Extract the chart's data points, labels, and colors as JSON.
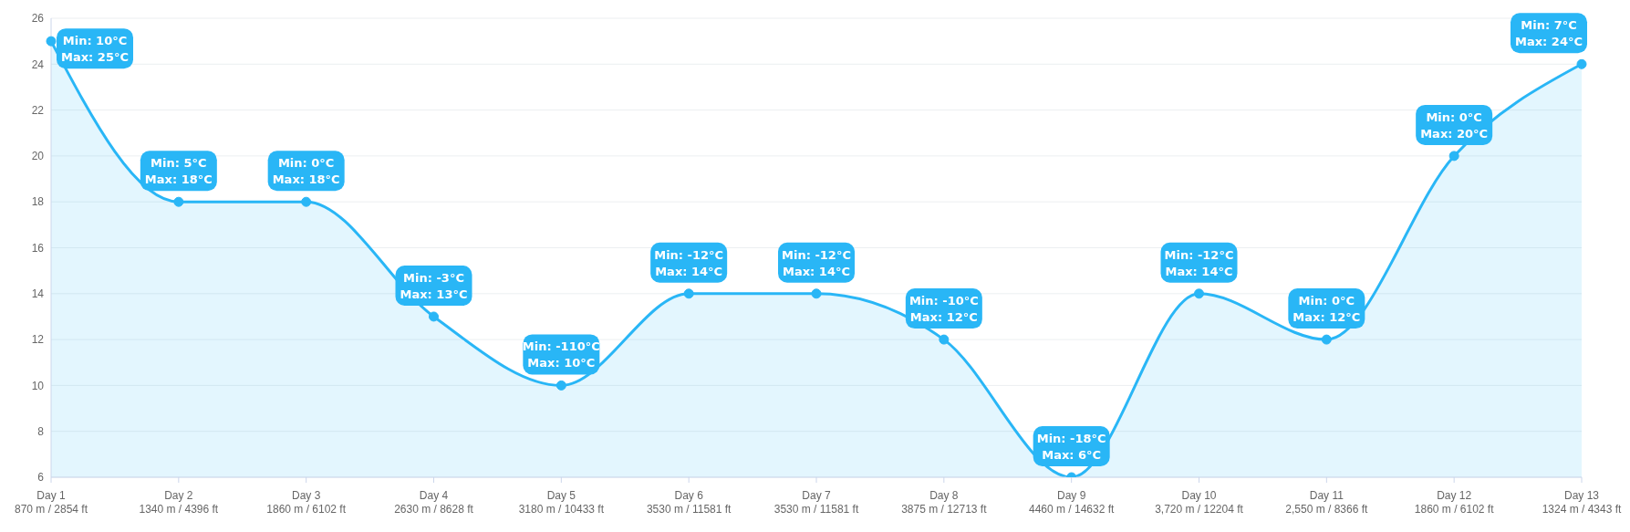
{
  "chart_data": {
    "type": "area",
    "categories": [
      "Day 1\n870 m / 2854 ft",
      "Day 2\n1340 m / 4396 ft",
      "Day 3\n1860 m / 6102 ft",
      "Day 4\n2630 m / 8628 ft",
      "Day 5\n3180 m / 10433 ft",
      "Day 6\n3530 m / 11581 ft",
      "Day 7\n3530 m / 11581 ft",
      "Day 8\n3875 m / 12713 ft",
      "Day 9\n4460 m / 14632 ft",
      "Day 10\n3,720 m / 12204 ft",
      "Day 11\n2,550 m / 8366 ft",
      "Day 12\n1860 m / 6102 ft",
      "Day 13\n1324 m / 4343 ft"
    ],
    "series": [
      {
        "color": "#29b6f6",
        "values": [
          25,
          18,
          18,
          13,
          10,
          14,
          14,
          12,
          6,
          14,
          12,
          20,
          24
        ],
        "value_labels": [
          "Min: 10°C\nMax: 25°C",
          "Min: 5°C\nMax: 18°C",
          "Min: 0°C\nMax: 18°C",
          "Min: -3°C\nMax: 13°C",
          "Min: -110°C\nMax: 10°C",
          "Min: -12°C\nMax: 14°C",
          "Min: -12°C\nMax: 14°C",
          "Min: -10°C\nMax: 12°C",
          "Min: -18°C\nMax: 6°C",
          "Min: -12°C\nMax: 14°C",
          "Min: 0°C\nMax: 12°C",
          "Min: 0°C\nMax: 20°C",
          "Min: 7°C\nMax: 24°C"
        ]
      }
    ],
    "ylim": [
      6,
      26
    ],
    "yticks": [
      6,
      8,
      10,
      12,
      14,
      16,
      18,
      20,
      22,
      24,
      26
    ],
    "grid": "y",
    "marker": "circle",
    "line_style": "solid",
    "legend": false
  }
}
